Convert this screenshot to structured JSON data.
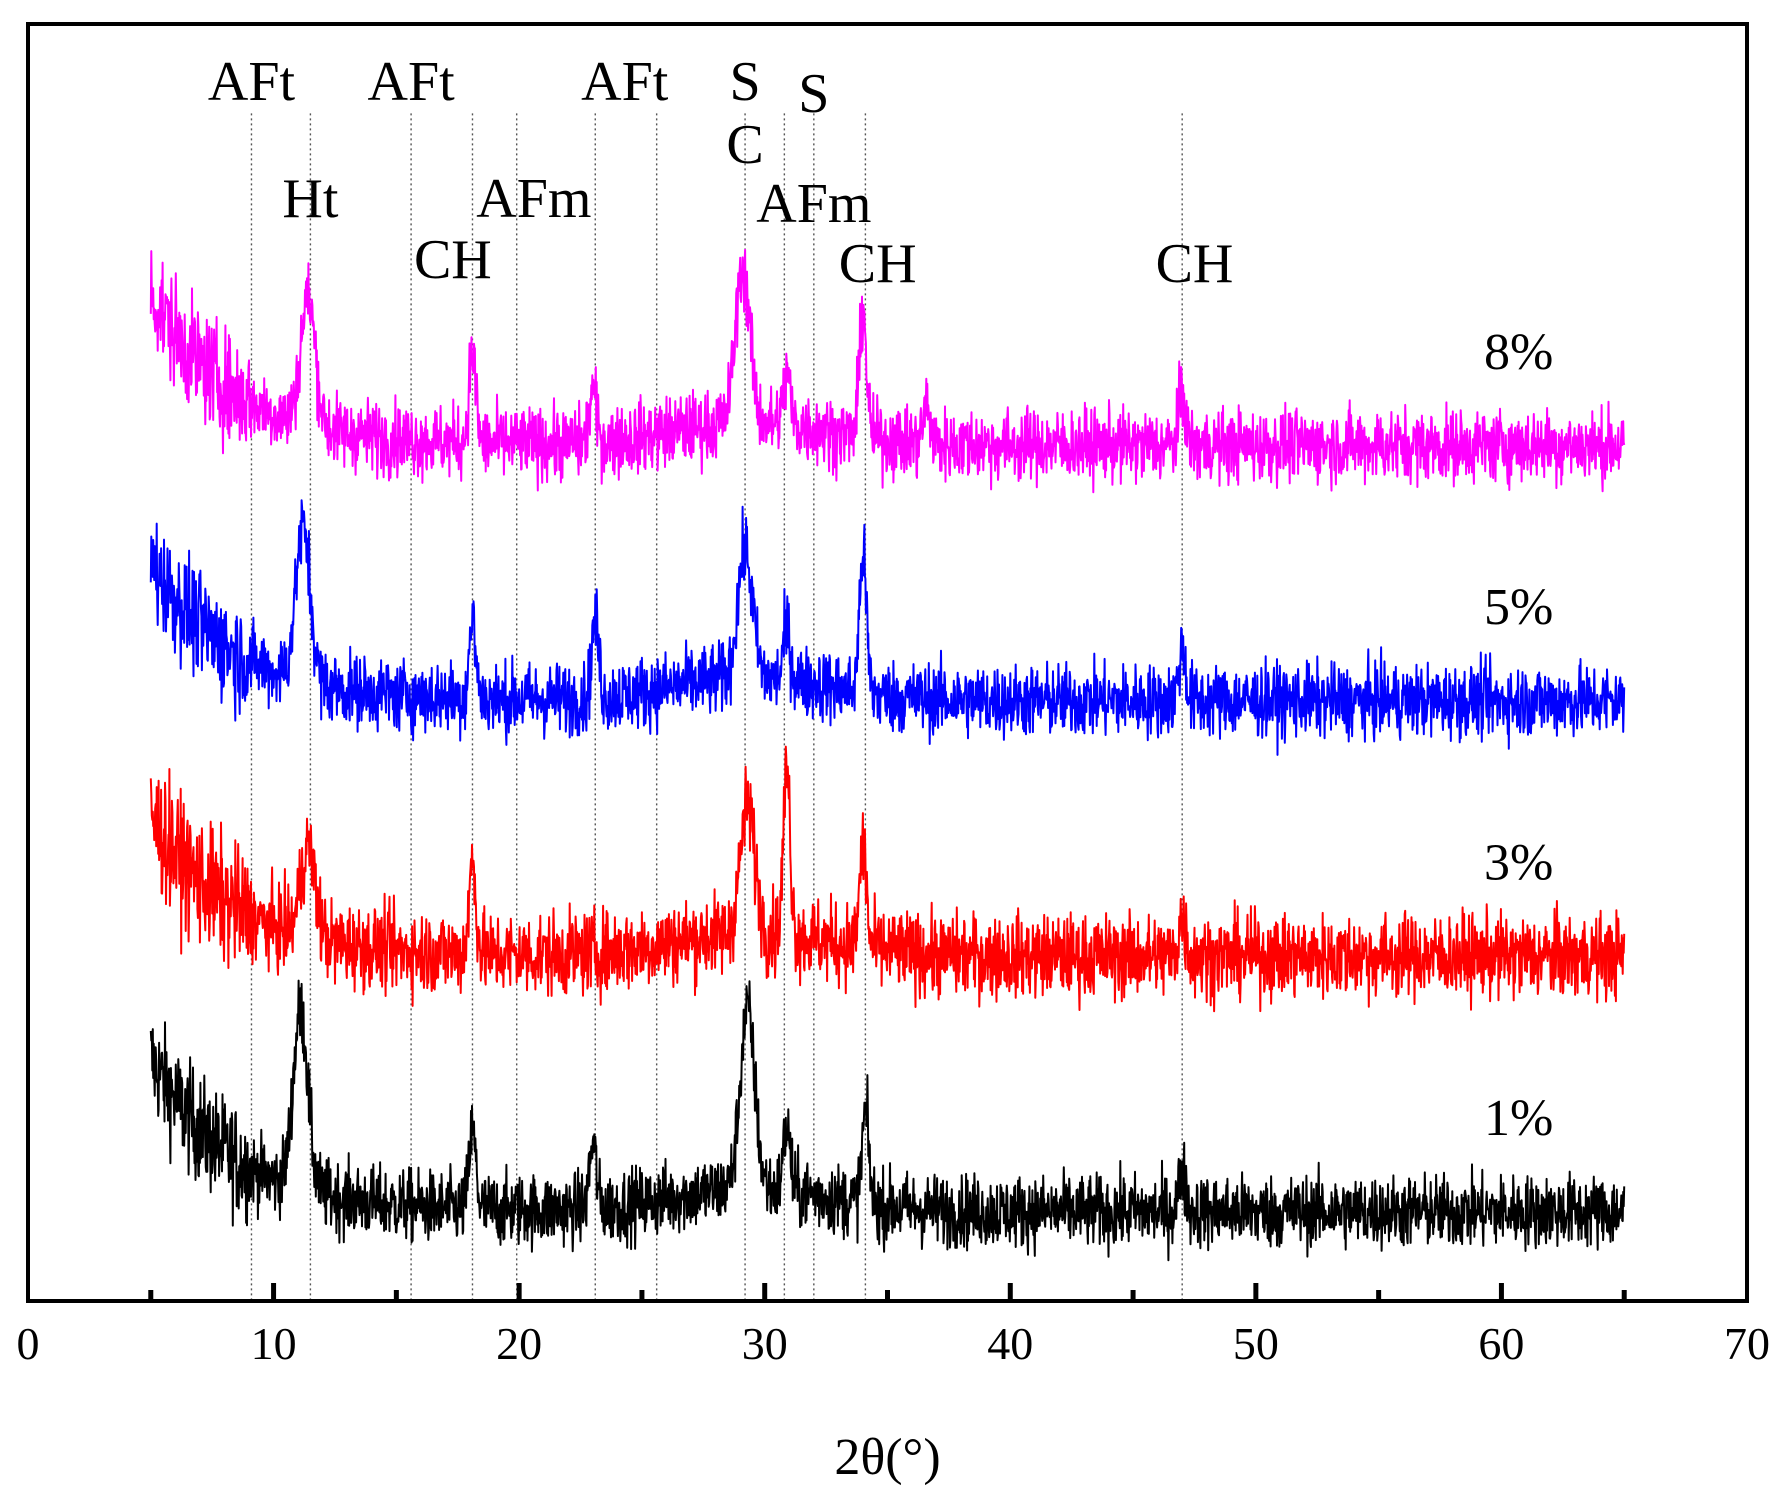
{
  "chart_data": {
    "type": "line",
    "title": "",
    "xlabel": "2θ(°)",
    "ylabel": "",
    "xlim": [
      0,
      70
    ],
    "xticks": [
      0,
      10,
      20,
      30,
      40,
      50,
      60,
      70
    ],
    "x_range_of_data": [
      5,
      65
    ],
    "yaxis_visible": false,
    "colors": {
      "axis": "#000000",
      "ref_line": "#555555",
      "s1": "#000000",
      "s3": "#ff0000",
      "s5": "#0000ff",
      "s8": "#ff00ff"
    },
    "series": [
      {
        "name": "1%",
        "color": "#000000",
        "baseline": 0.07,
        "noise": 0.028,
        "start_level": 0.19,
        "peaks": [
          [
            11.1,
            0.14
          ],
          [
            18.1,
            0.06
          ],
          [
            23.0,
            0.05
          ],
          [
            29.3,
            0.14
          ],
          [
            30.9,
            0.05
          ],
          [
            34.1,
            0.07
          ],
          [
            47.0,
            0.03
          ]
        ]
      },
      {
        "name": "3%",
        "color": "#ff0000",
        "baseline": 0.27,
        "noise": 0.032,
        "start_level": 0.38,
        "peaks": [
          [
            11.4,
            0.07
          ],
          [
            18.1,
            0.07
          ],
          [
            29.3,
            0.1
          ],
          [
            30.9,
            0.13
          ],
          [
            34.0,
            0.08
          ],
          [
            47.0,
            0.03
          ]
        ]
      },
      {
        "name": "5%",
        "color": "#0000ff",
        "baseline": 0.47,
        "noise": 0.028,
        "start_level": 0.58,
        "peaks": [
          [
            11.2,
            0.12
          ],
          [
            18.1,
            0.06
          ],
          [
            23.1,
            0.06
          ],
          [
            29.2,
            0.1
          ],
          [
            30.9,
            0.04
          ],
          [
            34.0,
            0.11
          ],
          [
            47.0,
            0.04
          ]
        ]
      },
      {
        "name": "8%",
        "color": "#ff00ff",
        "baseline": 0.67,
        "noise": 0.028,
        "start_level": 0.79,
        "peaks": [
          [
            11.4,
            0.1
          ],
          [
            18.1,
            0.07
          ],
          [
            23.0,
            0.04
          ],
          [
            29.1,
            0.12
          ],
          [
            30.9,
            0.04
          ],
          [
            34.0,
            0.1
          ],
          [
            36.6,
            0.03
          ],
          [
            47.0,
            0.04
          ]
        ]
      }
    ],
    "annotations": {
      "reference_lines": [
        9.1,
        11.5,
        15.6,
        18.1,
        19.9,
        23.1,
        25.6,
        29.2,
        30.8,
        32.0,
        34.1,
        47.0
      ],
      "labels": [
        {
          "text": "AFt",
          "x": 9.1,
          "level": 1
        },
        {
          "text": "AFt",
          "x": 15.6,
          "level": 1
        },
        {
          "text": "AFt",
          "x": 24.3,
          "level": 1
        },
        {
          "text": "S",
          "x": 29.2,
          "level": 1
        },
        {
          "text": "S",
          "x": 32.0,
          "level": 2
        },
        {
          "text": "C",
          "x": 29.2,
          "level": 3
        },
        {
          "text": "Ht",
          "x": 11.5,
          "level": 4
        },
        {
          "text": "AFm",
          "x": 20.6,
          "level": 4
        },
        {
          "text": "AFm",
          "x": 32.0,
          "level": 5
        },
        {
          "text": "CH",
          "x": 17.3,
          "level": 6
        },
        {
          "text": "CH",
          "x": 34.6,
          "level": 7
        },
        {
          "text": "CH",
          "x": 47.5,
          "level": 7
        }
      ]
    }
  }
}
